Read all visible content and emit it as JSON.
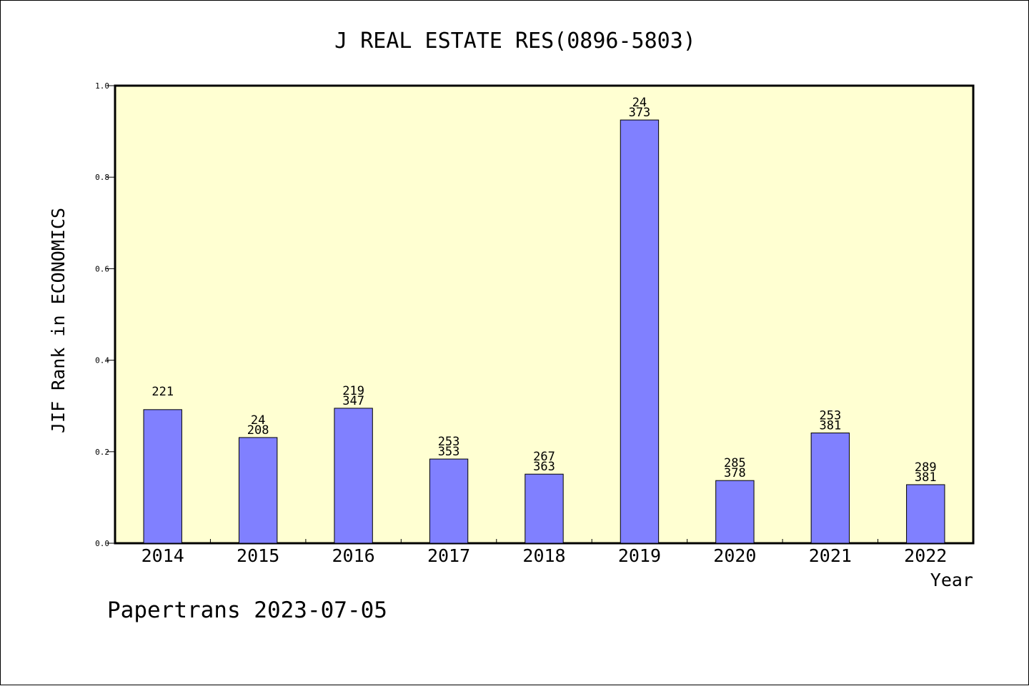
{
  "chart_data": {
    "type": "bar",
    "title": "J REAL ESTATE RES(0896-5803)",
    "xlabel": "Year",
    "ylabel": "JIF Rank in ECONOMICS",
    "ylim": [
      0,
      1.0
    ],
    "yticks": [
      "0.0",
      "0.2",
      "0.4",
      "0.6",
      "0.8",
      "1.0"
    ],
    "grid": false,
    "categories": [
      "2014",
      "2015",
      "2016",
      "2017",
      "2018",
      "2019",
      "2020",
      "2021",
      "2022"
    ],
    "values": [
      0.292,
      0.231,
      0.295,
      0.184,
      0.151,
      0.925,
      0.137,
      0.241,
      0.128
    ],
    "bar_labels": [
      [
        "221"
      ],
      [
        "24",
        "208"
      ],
      [
        "219",
        "347"
      ],
      [
        "253",
        "353"
      ],
      [
        "267",
        "363"
      ],
      [
        "24",
        "373"
      ],
      [
        "285",
        "378"
      ],
      [
        "253",
        "381"
      ],
      [
        "289",
        "381"
      ]
    ],
    "colors": {
      "bar": "#8080ff",
      "plot_background": "#ffffd2",
      "axis": "#000000"
    }
  },
  "footer": {
    "watermark": "Papertrans 2023-07-05"
  }
}
